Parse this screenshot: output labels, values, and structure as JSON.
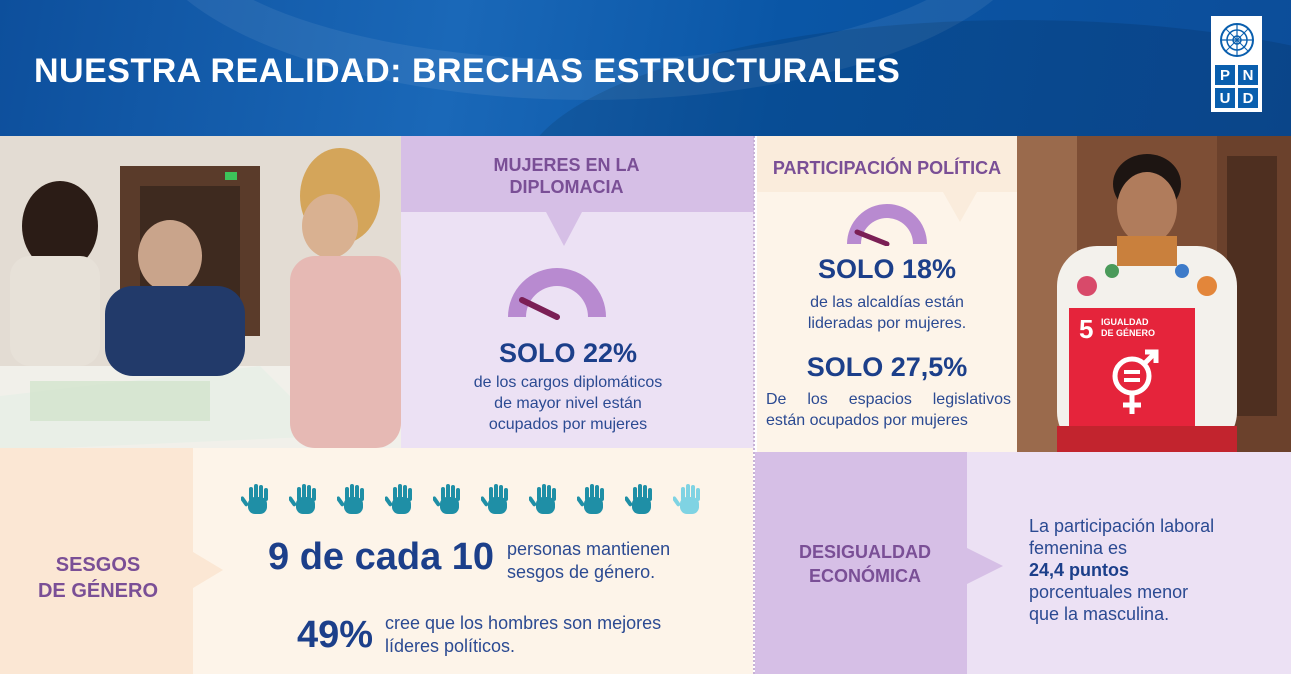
{
  "header": {
    "title": "NUESTRA REALIDAD: BRECHAS ESTRUCTURALES",
    "logo_letters": [
      "P",
      "N",
      "U",
      "D"
    ]
  },
  "diplomacia": {
    "heading_line1": "MUJERES EN LA",
    "heading_line2": "DIPLOMACIA",
    "gauge_percent": 22,
    "stat": "SOLO 22%",
    "desc_line1": "de los cargos diplomáticos",
    "desc_line2": "de mayor nivel están",
    "desc_line3": "ocupados por mujeres"
  },
  "politica": {
    "heading": "PARTICIPACIÓN POLÍTICA",
    "gauge_percent": 18,
    "stat1": "SOLO 18%",
    "desc1_line1": "de las alcaldías están",
    "desc1_line2": "lideradas por mujeres.",
    "stat2": "SOLO 27,5%",
    "desc2_line1": "De los espacios legislativos",
    "desc2_line2": "están ocupados por mujeres"
  },
  "ods_badge": {
    "number": "5",
    "label_line1": "IGUALDAD",
    "label_line2": "DE GÉNERO",
    "color": "#e5243b"
  },
  "sesgos": {
    "label_line1": "SESGOS",
    "label_line2": "DE GÉNERO",
    "hands_total": 10,
    "hands_highlighted": 9,
    "hand_color": "#1f8fa6",
    "hand_color_light": "#7fd3e3",
    "stat1": "9 de cada 10",
    "desc1_line1": "personas mantienen",
    "desc1_line2": "sesgos de género.",
    "stat2": "49%",
    "desc2_line1": "cree que los hombres son mejores",
    "desc2_line2": "líderes políticos."
  },
  "economica": {
    "label_line1": "DESIGUALDAD",
    "label_line2": "ECONÓMICA",
    "line1": "La participación laboral",
    "line2": "femenina es",
    "highlight": "24,4 puntos",
    "line3": "porcentuales menor",
    "line4": "que la masculina."
  },
  "colors": {
    "navy_text": "#1c3f8a",
    "purple_heading": "#7a4f96",
    "lilac": "#d6bfe6",
    "light_lilac": "#ece1f4",
    "cream": "#fdf4e9",
    "peach": "#fbe7d4"
  }
}
